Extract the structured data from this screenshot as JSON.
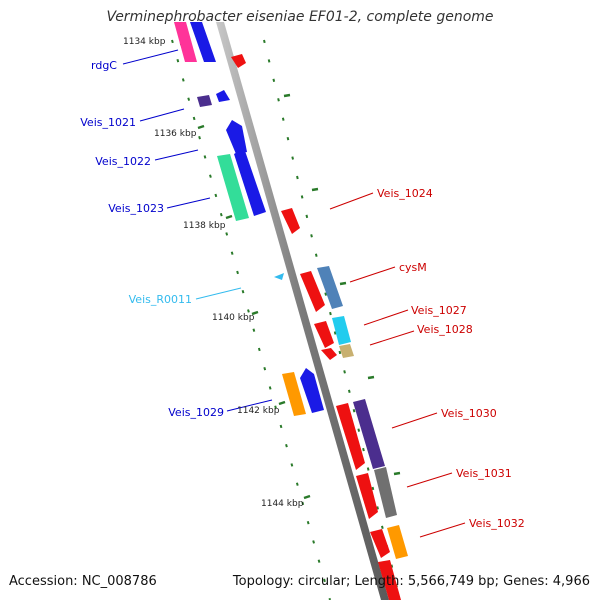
{
  "title": "Verminephrobacter eiseniae EF01-2, complete genome",
  "footer": {
    "accession": "Accession: NC_008786",
    "summary": "Topology: circular; Length: 5,566,749 bp; Genes: 4,966"
  },
  "colors": {
    "backbone": "#808080",
    "ticks": "#2a7a2a",
    "strand_minus_label": "#0000cc",
    "strand_plus_label": "#cc0000",
    "rna_label": "#33bbee"
  },
  "kbp_labels": [
    "1134 kbp",
    "1136 kbp",
    "1138 kbp",
    "1140 kbp",
    "1142 kbp",
    "1144 kbp"
  ],
  "gene_labels": [
    {
      "text": "rdgC",
      "strand": "minus"
    },
    {
      "text": "Veis_1021",
      "strand": "minus"
    },
    {
      "text": "Veis_1022",
      "strand": "minus"
    },
    {
      "text": "Veis_1023",
      "strand": "minus"
    },
    {
      "text": "Veis_R0011",
      "strand": "rna"
    },
    {
      "text": "Veis_1029",
      "strand": "minus"
    },
    {
      "text": "Veis_1024",
      "strand": "plus"
    },
    {
      "text": "cysM",
      "strand": "plus"
    },
    {
      "text": "Veis_1027",
      "strand": "plus"
    },
    {
      "text": "Veis_1028",
      "strand": "plus"
    },
    {
      "text": "Veis_1030",
      "strand": "plus"
    },
    {
      "text": "Veis_1031",
      "strand": "plus"
    },
    {
      "text": "Veis_1032",
      "strand": "plus"
    }
  ]
}
